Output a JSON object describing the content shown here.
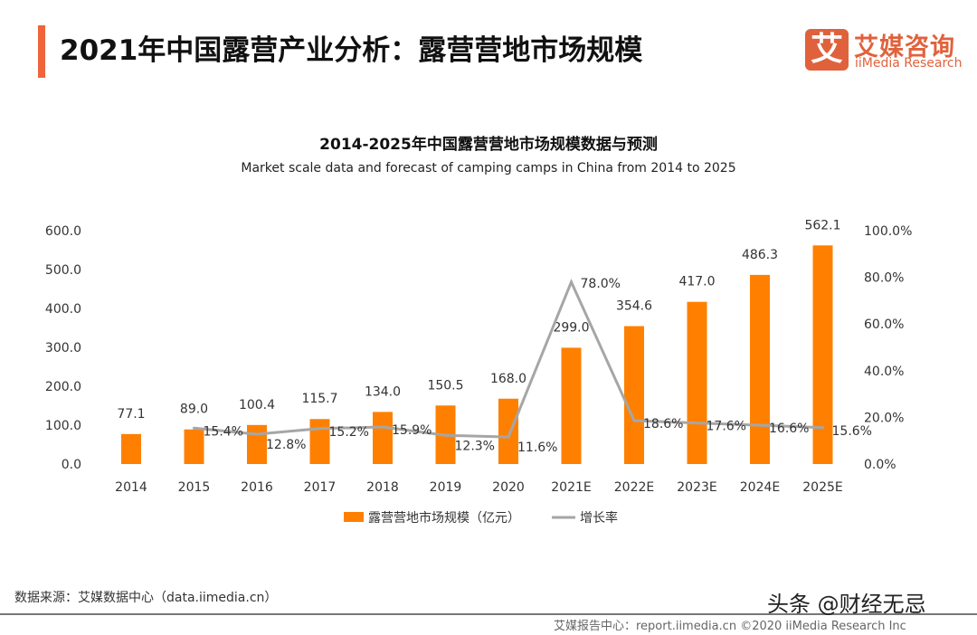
{
  "header": {
    "title": "2021年中国露营产业分析：露营营地市场规模",
    "logo_mark": "艾",
    "logo_cn": "艾媒咨询",
    "logo_en": "iiMedia Research"
  },
  "chart_data": {
    "type": "bar+line",
    "title": "2014-2025年中国露营营地市场规模数据与预测",
    "subtitle": "Market scale data and forecast of camping camps in China from 2014 to 2025",
    "categories": [
      "2014",
      "2015",
      "2016",
      "2017",
      "2018",
      "2019",
      "2020",
      "2021E",
      "2022E",
      "2023E",
      "2024E",
      "2025E"
    ],
    "series": [
      {
        "name": "露营营地市场规模（亿元）",
        "type": "bar",
        "axis": "left",
        "color": "#ff8000",
        "values": [
          77.1,
          89.0,
          100.4,
          115.7,
          134.0,
          150.5,
          168.0,
          299.0,
          354.6,
          417.0,
          486.3,
          562.1
        ]
      },
      {
        "name": "增长率",
        "type": "line",
        "axis": "right",
        "color": "#a6a6a6",
        "values": [
          null,
          15.4,
          12.8,
          15.2,
          15.9,
          12.3,
          11.6,
          78.0,
          18.6,
          17.6,
          16.6,
          15.6
        ]
      }
    ],
    "y_left": {
      "ylim": [
        0,
        600
      ],
      "ticks": [
        "0.0",
        "100.0",
        "200.0",
        "300.0",
        "400.0",
        "500.0",
        "600.0"
      ]
    },
    "y_right": {
      "ylim": [
        0,
        100
      ],
      "ticks": [
        "0.0%",
        "20.0%",
        "40.0%",
        "60.0%",
        "80.0%",
        "100.0%"
      ]
    },
    "grid": false,
    "legend": "bottom"
  },
  "footer": {
    "source": "数据来源：艾媒数据中心（data.iimedia.cn）",
    "report": "艾媒报告中心：report.iimedia.cn  ©2020  iiMedia Research  Inc",
    "watermark": "头条 @财经无忌"
  }
}
